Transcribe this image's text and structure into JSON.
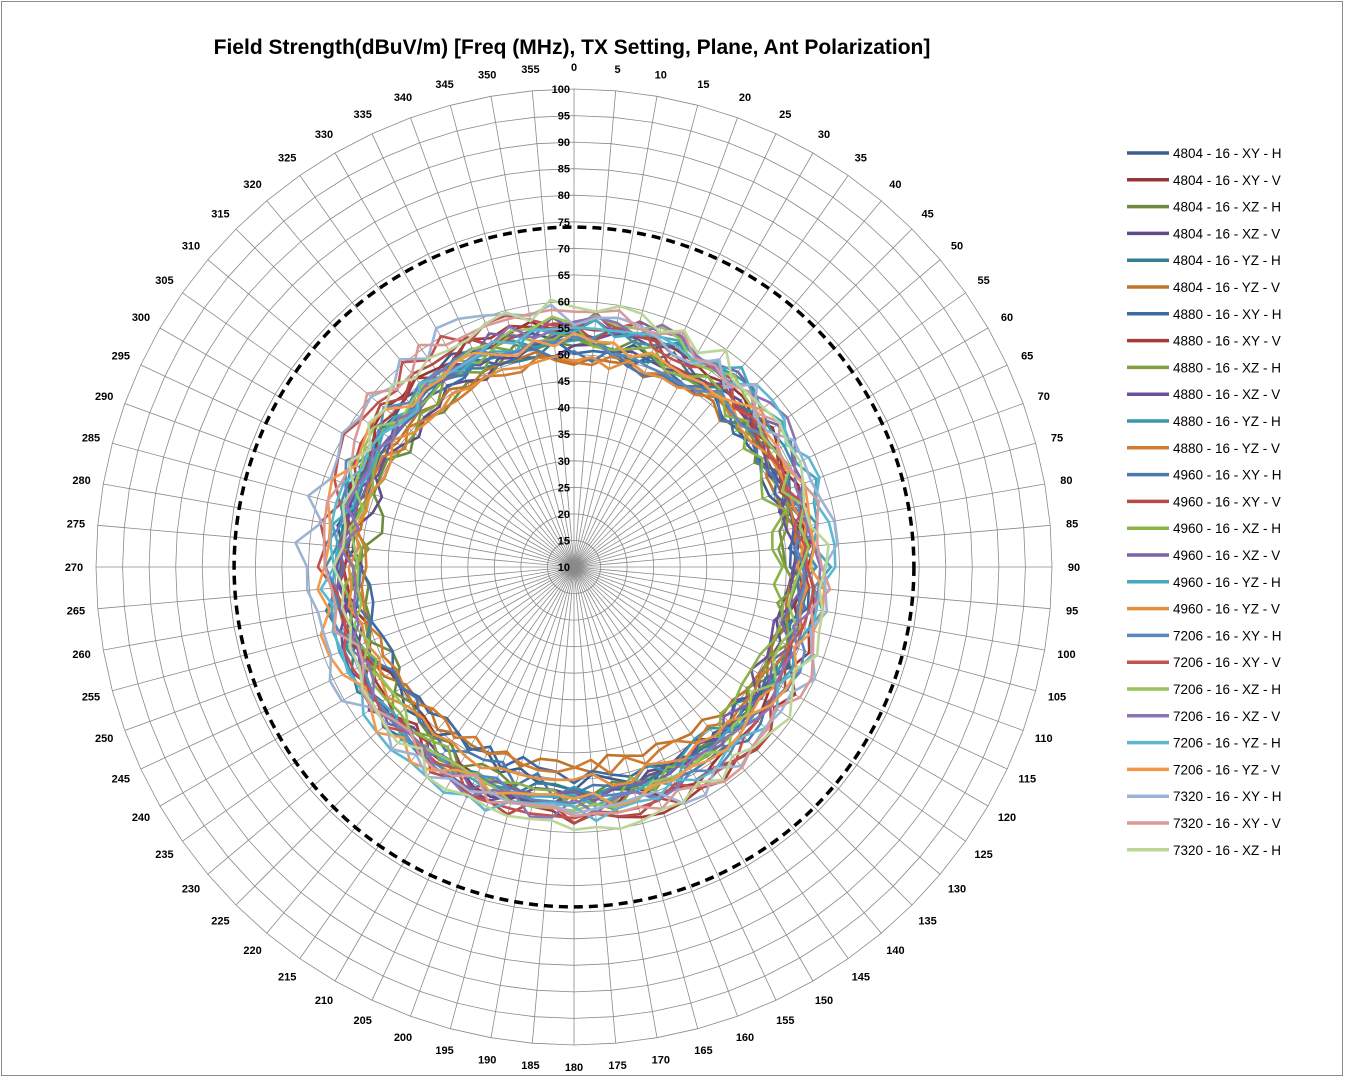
{
  "chart_data": {
    "type": "radar",
    "title": "Field Strength(dBuV/m) [Freq (MHz), TX Setting, Plane, Ant Polarization]",
    "angle_labels": [
      "0",
      "5",
      "10",
      "15",
      "20",
      "25",
      "30",
      "35",
      "40",
      "45",
      "50",
      "55",
      "60",
      "65",
      "70",
      "75",
      "80",
      "85",
      "90",
      "95",
      "100",
      "105",
      "110",
      "115",
      "120",
      "125",
      "130",
      "135",
      "140",
      "145",
      "150",
      "155",
      "160",
      "165",
      "170",
      "175",
      "180",
      "185",
      "190",
      "195",
      "200",
      "205",
      "210",
      "215",
      "220",
      "225",
      "230",
      "235",
      "240",
      "245",
      "250",
      "255",
      "260",
      "265",
      "270",
      "275",
      "280",
      "285",
      "290",
      "295",
      "300",
      "305",
      "310",
      "315",
      "320",
      "325",
      "330",
      "335",
      "340",
      "345",
      "350",
      "355"
    ],
    "radial_ticks": [
      "10",
      "15",
      "20",
      "25",
      "30",
      "35",
      "40",
      "45",
      "50",
      "55",
      "60",
      "65",
      "70",
      "75",
      "80",
      "85",
      "90",
      "95",
      "100"
    ],
    "radial_range": [
      10,
      100
    ],
    "limit_line": {
      "value": 74,
      "style": "dashed",
      "color": "#000000"
    },
    "legend_position": "right",
    "series": [
      {
        "name": "4804 - 16 - XY - H",
        "color": "#3a5f8f",
        "base": 52,
        "amp": 4,
        "seed": 1
      },
      {
        "name": "4804 - 16 - XY - V",
        "color": "#943634",
        "base": 54,
        "amp": 4,
        "seed": 2
      },
      {
        "name": "4804 - 16 - XZ - H",
        "color": "#6e8b3d",
        "base": 51,
        "amp": 4,
        "seed": 3
      },
      {
        "name": "4804 - 16 - XZ - V",
        "color": "#5f4b8b",
        "base": 52,
        "amp": 4,
        "seed": 4
      },
      {
        "name": "4804 - 16 - YZ - H",
        "color": "#2f8193",
        "base": 53,
        "amp": 4,
        "seed": 5
      },
      {
        "name": "4804 - 16 - YZ - V",
        "color": "#c0732a",
        "base": 50,
        "amp": 3,
        "seed": 6
      },
      {
        "name": "4880 - 16 - XY - H",
        "color": "#3e6aa3",
        "base": 51,
        "amp": 4,
        "seed": 7
      },
      {
        "name": "4880 - 16 - XY - V",
        "color": "#a73b38",
        "base": 55,
        "amp": 4,
        "seed": 8
      },
      {
        "name": "4880 - 16 - XZ - H",
        "color": "#7fa03d",
        "base": 52,
        "amp": 4,
        "seed": 9
      },
      {
        "name": "4880 - 16 - XZ - V",
        "color": "#6a5098",
        "base": 53,
        "amp": 4,
        "seed": 10
      },
      {
        "name": "4880 - 16 - YZ - H",
        "color": "#3a95aa",
        "base": 54,
        "amp": 4,
        "seed": 11
      },
      {
        "name": "4880 - 16 - YZ - V",
        "color": "#d07b30",
        "base": 50,
        "amp": 3,
        "seed": 12
      },
      {
        "name": "4960 - 16 - XY - H",
        "color": "#4978ad",
        "base": 52,
        "amp": 4,
        "seed": 13
      },
      {
        "name": "4960 - 16 - XY - V",
        "color": "#b24a46",
        "base": 55,
        "amp": 4,
        "seed": 14
      },
      {
        "name": "4960 - 16 - XZ - H",
        "color": "#8bb34a",
        "base": 52,
        "amp": 4,
        "seed": 15
      },
      {
        "name": "4960 - 16 - XZ - V",
        "color": "#7c62a6",
        "base": 54,
        "amp": 4,
        "seed": 16
      },
      {
        "name": "4960 - 16 - YZ - H",
        "color": "#46a8c0",
        "base": 55,
        "amp": 4,
        "seed": 17
      },
      {
        "name": "4960 - 16 - YZ - V",
        "color": "#e58e3d",
        "base": 51,
        "amp": 3,
        "seed": 18
      },
      {
        "name": "7206 - 16 - XY - H",
        "color": "#5a87bf",
        "base": 54,
        "amp": 4,
        "seed": 19
      },
      {
        "name": "7206 - 16 - XY - V",
        "color": "#c2524f",
        "base": 56,
        "amp": 4,
        "seed": 20
      },
      {
        "name": "7206 - 16 - XZ - H",
        "color": "#9cc25a",
        "base": 54,
        "amp": 4,
        "seed": 21
      },
      {
        "name": "7206 - 16 - XZ - V",
        "color": "#8c74b4",
        "base": 55,
        "amp": 4,
        "seed": 22
      },
      {
        "name": "7206 - 16 - YZ - H",
        "color": "#5bb8d0",
        "base": 56,
        "amp": 4,
        "seed": 23
      },
      {
        "name": "7206 - 16 - YZ - V",
        "color": "#f29a4a",
        "base": 55,
        "amp": 4,
        "seed": 24
      },
      {
        "name": "7320 - 16 - XY - H",
        "color": "#9db3d4",
        "base": 58,
        "amp": 5,
        "seed": 25
      },
      {
        "name": "7320 - 16 - XY - V",
        "color": "#d89a98",
        "base": 57,
        "amp": 4,
        "seed": 26
      },
      {
        "name": "7320 - 16 - XZ - H",
        "color": "#bcd598",
        "base": 57,
        "amp": 4,
        "seed": 27
      }
    ]
  }
}
